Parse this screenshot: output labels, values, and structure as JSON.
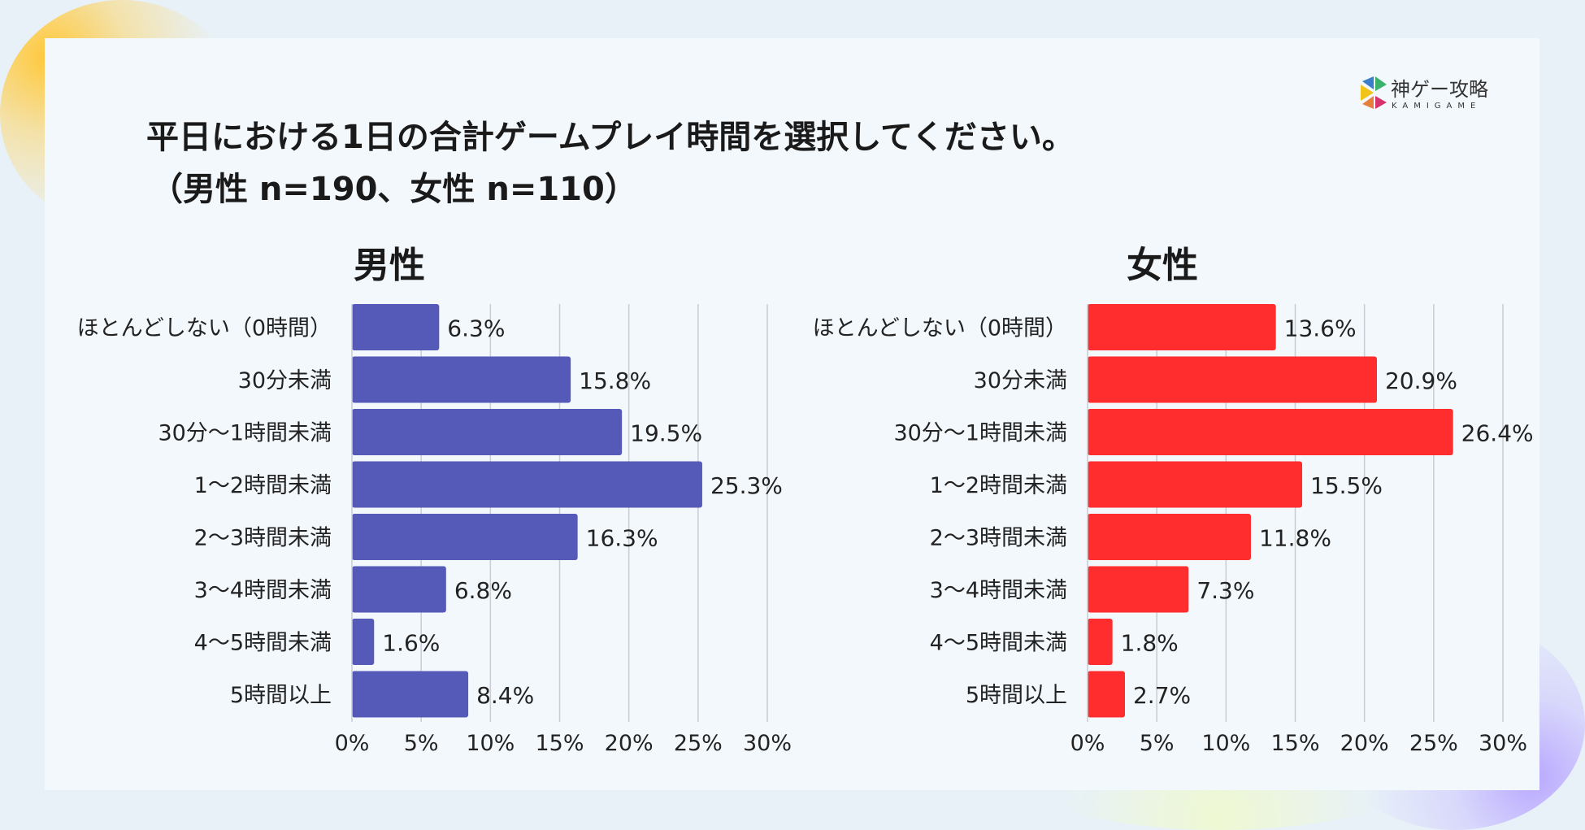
{
  "title": "平日における1日の合計ゲームプレイ時間を選択してください。",
  "subtitle": "（男性 n=190、女性 n=110）",
  "logo": {
    "text": "神ゲー攻略",
    "subtext": "KAMIGAME"
  },
  "chart_data": [
    {
      "type": "bar",
      "orientation": "horizontal",
      "title": "男性",
      "color": "#5559b8",
      "categories": [
        "ほとんどしない（0時間）",
        "30分未満",
        "30分〜1時間未満",
        "1〜2時間未満",
        "2〜3時間未満",
        "3〜4時間未満",
        "4〜5時間未満",
        "5時間以上"
      ],
      "values": [
        6.3,
        15.8,
        19.5,
        25.3,
        16.3,
        6.8,
        1.6,
        8.4
      ],
      "value_labels": [
        "6.3%",
        "15.8%",
        "19.5%",
        "25.3%",
        "16.3%",
        "6.8%",
        "1.6%",
        "8.4%"
      ],
      "xlim": [
        0,
        30
      ],
      "xticks": [
        "0%",
        "5%",
        "10%",
        "15%",
        "20%",
        "25%",
        "30%"
      ],
      "grid": true
    },
    {
      "type": "bar",
      "orientation": "horizontal",
      "title": "女性",
      "color": "#ff2d2d",
      "categories": [
        "ほとんどしない（0時間）",
        "30分未満",
        "30分〜1時間未満",
        "1〜2時間未満",
        "2〜3時間未満",
        "3〜4時間未満",
        "4〜5時間未満",
        "5時間以上"
      ],
      "values": [
        13.6,
        20.9,
        26.4,
        15.5,
        11.8,
        7.3,
        1.8,
        2.7
      ],
      "value_labels": [
        "13.6%",
        "20.9%",
        "26.4%",
        "15.5%",
        "11.8%",
        "7.3%",
        "1.8%",
        "2.7%"
      ],
      "xlim": [
        0,
        30
      ],
      "xticks": [
        "0%",
        "5%",
        "10%",
        "15%",
        "20%",
        "25%",
        "30%"
      ],
      "grid": true
    }
  ]
}
